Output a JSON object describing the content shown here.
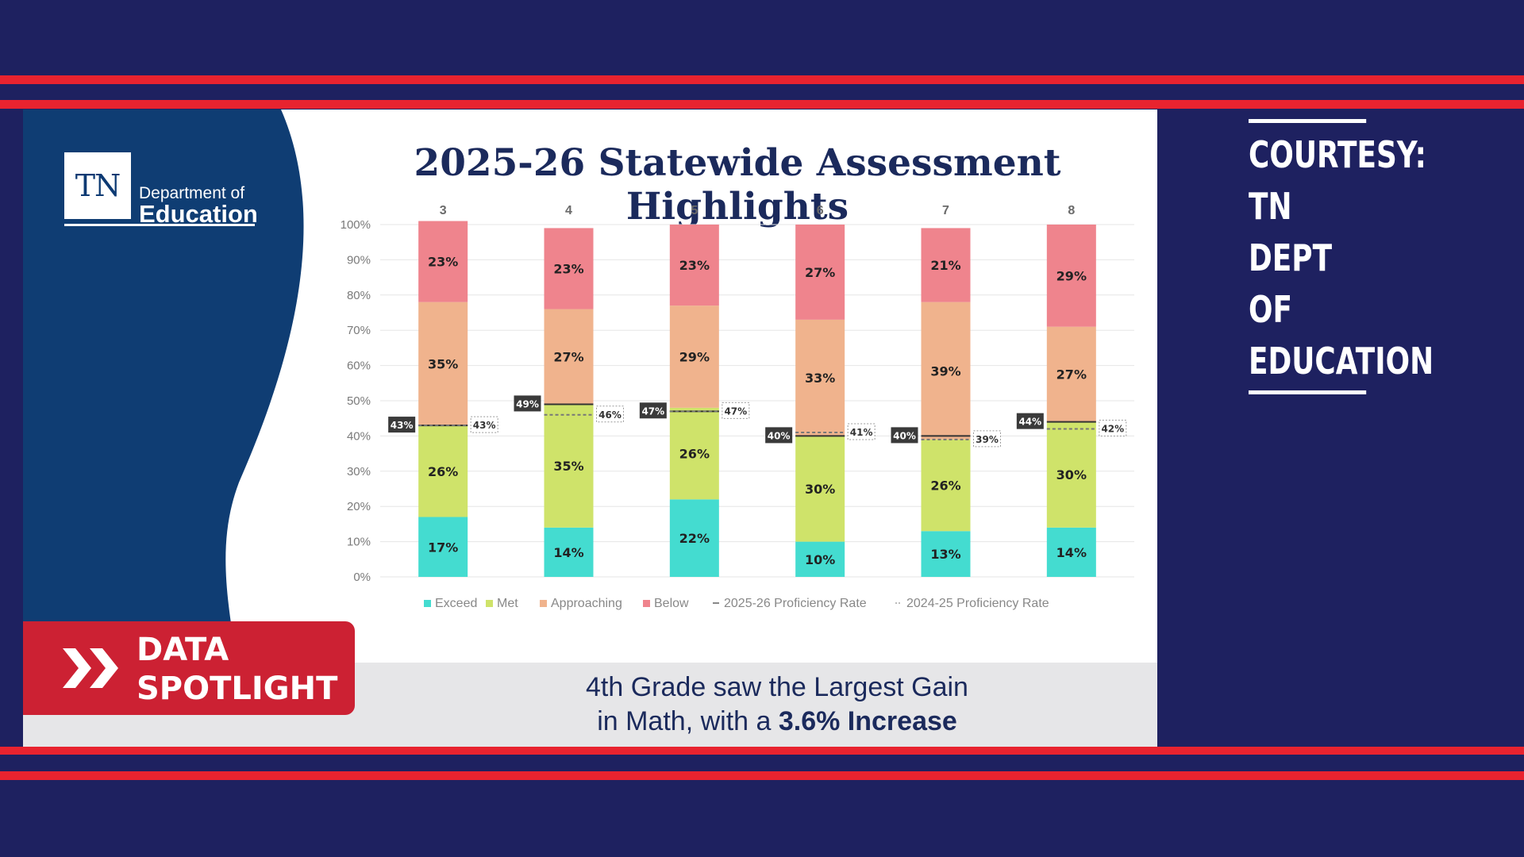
{
  "logo": {
    "box_text": "TN",
    "dept": "Department of",
    "edu": "Education"
  },
  "title": "2025-26 Statewide Assessment Highlights",
  "badge": {
    "line1": "DATA",
    "line2": "SPOTLIGHT",
    "icon": "double-chevron-right-icon"
  },
  "caption": {
    "line1": "4th Grade saw the Largest Gain",
    "line2_pre": "in Math, with a ",
    "line2_bold": "3.6% Increase"
  },
  "courtesy": {
    "line1": "COURTESY:",
    "line2": "TN DEPT OF",
    "line3": "EDUCATION"
  },
  "colors": {
    "background": "#1e2160",
    "stripe": "#e8232f",
    "wave": "#0f3d73",
    "exceed": "#44dcd0",
    "met": "#cfe36a",
    "approaching": "#f0b38d",
    "below": "#ef848d"
  },
  "chart_data": {
    "type": "bar",
    "stacked": true,
    "categories": [
      "3",
      "4",
      "5",
      "6",
      "7",
      "8"
    ],
    "ylim": [
      0,
      100
    ],
    "yticks": [
      "0%",
      "10%",
      "20%",
      "30%",
      "40%",
      "50%",
      "60%",
      "70%",
      "80%",
      "90%",
      "100%"
    ],
    "series": [
      {
        "name": "Exceed",
        "color": "#44dcd0",
        "values": [
          17,
          14,
          22,
          10,
          13,
          14
        ]
      },
      {
        "name": "Met",
        "color": "#cfe36a",
        "values": [
          26,
          35,
          26,
          30,
          26,
          30
        ]
      },
      {
        "name": "Approaching",
        "color": "#f0b38d",
        "values": [
          35,
          27,
          29,
          33,
          39,
          27
        ]
      },
      {
        "name": "Below",
        "color": "#ef848d",
        "values": [
          23,
          23,
          23,
          27,
          21,
          29
        ]
      }
    ],
    "proficiency": [
      {
        "name": "2025-26 Proficiency Rate",
        "style": "solid",
        "values": [
          43,
          49,
          47,
          40,
          40,
          44
        ]
      },
      {
        "name": "2024-25 Proficiency Rate",
        "style": "dashed",
        "values": [
          43,
          46,
          47,
          41,
          39,
          42
        ]
      }
    ],
    "legend": [
      "Exceed",
      "Met",
      "Approaching",
      "Below",
      "2025-26 Proficiency Rate",
      "2024-25 Proficiency Rate"
    ],
    "legend_position": "bottom",
    "grid": true
  }
}
